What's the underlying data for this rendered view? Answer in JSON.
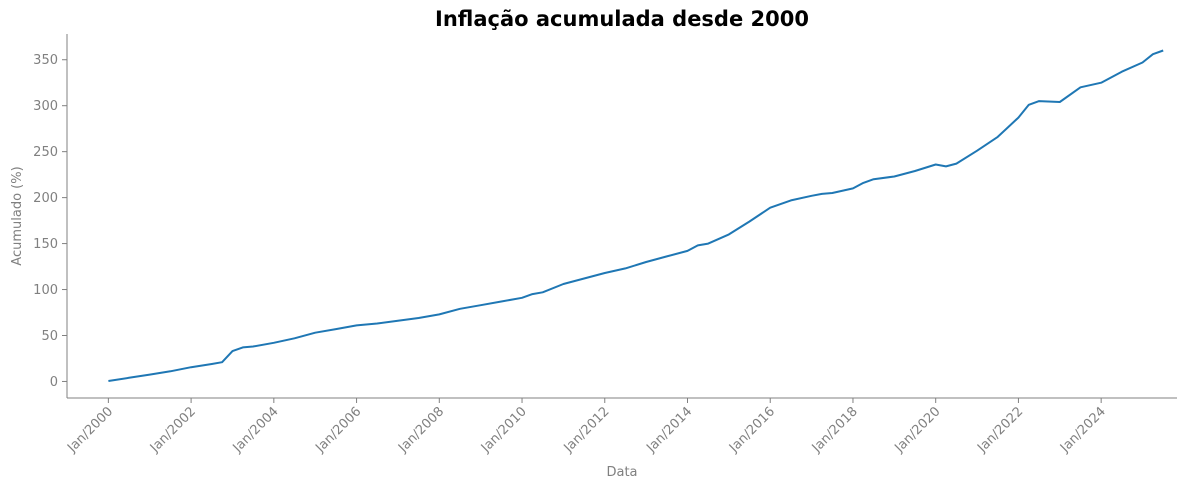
{
  "chart_data": {
    "type": "line",
    "title": "Inflação acumulada desde 2000",
    "xlabel": "Data",
    "ylabel": "Acumulado (%)",
    "xlim": [
      "1999-01",
      "2025-11"
    ],
    "ylim": [
      -18,
      378
    ],
    "y_ticks": [
      0,
      50,
      100,
      150,
      200,
      250,
      300,
      350
    ],
    "x_ticks": [
      "2000-01",
      "2002-01",
      "2004-01",
      "2006-01",
      "2008-01",
      "2010-01",
      "2012-01",
      "2014-01",
      "2016-01",
      "2018-01",
      "2020-01",
      "2022-01",
      "2024-01"
    ],
    "x_tick_labels": [
      "Jan/2000",
      "Jan/2002",
      "Jan/2004",
      "Jan/2006",
      "Jan/2008",
      "Jan/2010",
      "Jan/2012",
      "Jan/2014",
      "Jan/2016",
      "Jan/2018",
      "Jan/2020",
      "Jan/2022",
      "Jan/2024"
    ],
    "grid": false,
    "legend": "none",
    "line_color": "#1f77b4",
    "series": [
      {
        "x": [
          "2000-01",
          "2000-07",
          "2001-01",
          "2001-07",
          "2002-01",
          "2002-07",
          "2002-10",
          "2003-01",
          "2003-04",
          "2003-07",
          "2004-01",
          "2004-07",
          "2005-01",
          "2005-07",
          "2006-01",
          "2006-07",
          "2007-01",
          "2007-07",
          "2008-01",
          "2008-07",
          "2009-01",
          "2009-07",
          "2010-01",
          "2010-04",
          "2010-07",
          "2011-01",
          "2011-07",
          "2012-01",
          "2012-07",
          "2013-01",
          "2013-07",
          "2014-01",
          "2014-04",
          "2014-07",
          "2015-01",
          "2015-07",
          "2016-01",
          "2016-07",
          "2017-01",
          "2017-04",
          "2017-07",
          "2018-01",
          "2018-04",
          "2018-07",
          "2019-01",
          "2019-07",
          "2020-01",
          "2020-04",
          "2020-07",
          "2021-01",
          "2021-07",
          "2022-01",
          "2022-04",
          "2022-07",
          "2023-01",
          "2023-07",
          "2024-01",
          "2024-07",
          "2025-01",
          "2025-04",
          "2025-07"
        ],
        "y": [
          0.5,
          4,
          7.5,
          11,
          15.5,
          19,
          21,
          33,
          37,
          38,
          42,
          47,
          53,
          57,
          61,
          63,
          66,
          69,
          73,
          79,
          83,
          87,
          91,
          95,
          97,
          106,
          112,
          118,
          123,
          130,
          136,
          142,
          148,
          150,
          160,
          174,
          189,
          197,
          202,
          204,
          205,
          210,
          216,
          220,
          223,
          229,
          236,
          234,
          237,
          251,
          266,
          287,
          301,
          305,
          304,
          320,
          325,
          337,
          347,
          356,
          360
        ]
      }
    ]
  }
}
